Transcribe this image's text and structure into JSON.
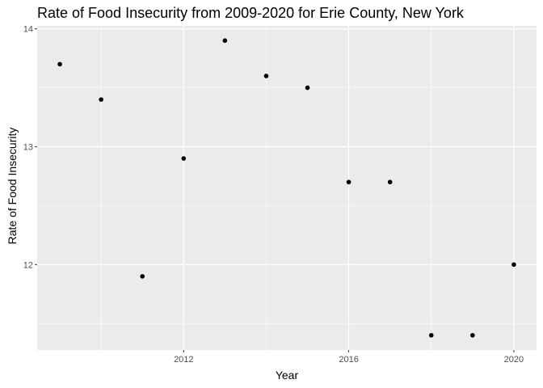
{
  "chart_data": {
    "type": "scatter",
    "title": "Rate of Food Insecurity from 2009-2020 for Erie County, New York",
    "xlabel": "Year",
    "ylabel": "Rate of Food Insecurity",
    "x": [
      2009,
      2010,
      2011,
      2012,
      2013,
      2014,
      2015,
      2016,
      2017,
      2018,
      2019,
      2020
    ],
    "series": [
      {
        "values": [
          13.7,
          13.4,
          11.9,
          12.9,
          13.9,
          13.6,
          13.5,
          12.7,
          12.7,
          11.4,
          11.4,
          12.0
        ]
      }
    ],
    "xlim": [
      2008.45,
      2020.55
    ],
    "ylim": [
      11.275,
      14.025
    ],
    "x_ticks": [
      2012,
      2016,
      2020
    ],
    "x_tick_labels": [
      "2012",
      "2016",
      "2020"
    ],
    "x_minor_ticks": [
      2010,
      2014,
      2018
    ],
    "y_ticks": [
      12,
      13,
      14
    ],
    "y_tick_labels": [
      "12",
      "13",
      "14"
    ],
    "y_minor_ticks": [
      11.5,
      12.5,
      13.5
    ],
    "grid": true,
    "legend": "none",
    "colors": {
      "panel_background": "#ebebeb",
      "grid_line": "#ffffff",
      "point": "#000000",
      "tick_label": "#4d4d4d",
      "axis_tick": "#333333"
    }
  }
}
